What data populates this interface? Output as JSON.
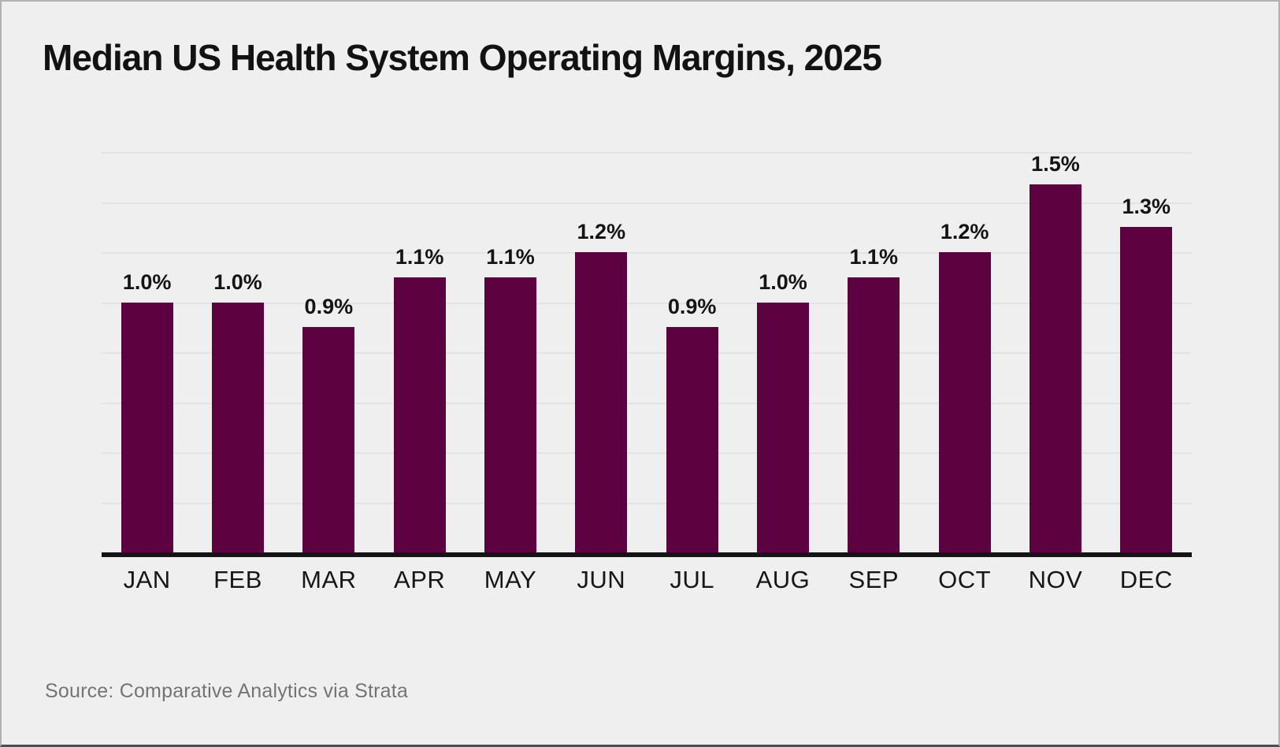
{
  "header": {
    "title": "Median US Health System Operating Margins, 2025"
  },
  "footer": {
    "source": "Source: Comparative Analytics via Strata"
  },
  "style": {
    "bar_color": "#5C0240",
    "background_color": "#F0EFF0",
    "gridline_color": "#E3E2E4",
    "axis_color": "#141414",
    "title_color": "#121212",
    "source_color": "#747474"
  },
  "chart_data": {
    "type": "bar",
    "title": "Median US Health System Operating Margins, 2025",
    "categories": [
      "JAN",
      "FEB",
      "MAR",
      "APR",
      "MAY",
      "JUN",
      "JUL",
      "AUG",
      "SEP",
      "OCT",
      "NOV",
      "DEC"
    ],
    "values": [
      1.0,
      1.0,
      0.9,
      1.1,
      1.1,
      1.2,
      0.9,
      1.0,
      1.1,
      1.2,
      1.5,
      1.3
    ],
    "value_labels": [
      "1.0%",
      "1.0%",
      "0.9%",
      "1.1%",
      "1.1%",
      "1.2%",
      "0.9%",
      "1.0%",
      "1.1%",
      "1.2%",
      "1.5%",
      "1.3%"
    ],
    "xlabel": "",
    "ylabel": "",
    "ylim": [
      0,
      1.6
    ],
    "gridline_interval": 0.2,
    "grid": true,
    "y_tick_labels_visible": false,
    "legend_position": "none",
    "source": "Source: Comparative Analytics via Strata"
  }
}
